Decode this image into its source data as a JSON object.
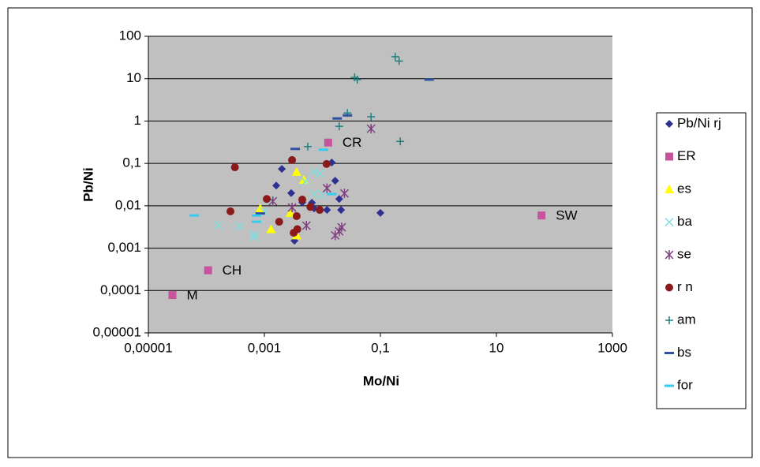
{
  "chart_data": {
    "type": "scatter",
    "x_label": "Mo/Ni",
    "y_label": "Pb/Ni",
    "xscale": "log",
    "yscale": "log",
    "grid": true,
    "legend": "right",
    "xlim": [
      1e-05,
      1000
    ],
    "ylim": [
      1e-05,
      100
    ],
    "xticks": [
      {
        "value": 1e-05,
        "label": "0,00001"
      },
      {
        "value": 0.001,
        "label": "0,001"
      },
      {
        "value": 0.1,
        "label": "0,1"
      },
      10,
      1000
    ],
    "yticks": [
      {
        "value": 1e-05,
        "label": "0,00001"
      },
      {
        "value": 0.0001,
        "label": "0,0001"
      },
      {
        "value": 0.001,
        "label": "0,001"
      },
      {
        "value": 0.01,
        "label": "0,01"
      },
      {
        "value": 0.1,
        "label": "0,1"
      },
      1,
      10,
      100
    ],
    "series": [
      {
        "name": "Pb/Ni rj",
        "color": "#2e3192",
        "marker": "diamond",
        "x": [
          0.002,
          0.0016,
          0.0029,
          0.0045,
          0.0066,
          0.0145,
          0.0166,
          0.0195,
          0.021,
          0.012,
          0.0033,
          0.1,
          0.0072
        ],
        "values": [
          0.074,
          0.03,
          0.02,
          0.012,
          0.0118,
          0.105,
          0.039,
          0.0145,
          0.008,
          0.008,
          0.0015,
          0.0068,
          0.0087
        ]
      },
      {
        "name": "ER",
        "color": "#c6539b",
        "marker": "square",
        "x": [
          2.6e-05,
          0.000107,
          0.0126,
          60
        ],
        "values": [
          7.8e-05,
          0.0003,
          0.31,
          0.0059
        ],
        "labels": [
          "M",
          "CH",
          "CR",
          "SW"
        ]
      },
      {
        "name": "es",
        "color": "#ffff00",
        "marker": "triangle",
        "x": [
          0.0036,
          0.0048,
          0.00085,
          0.0013,
          0.0036,
          0.0028
        ],
        "values": [
          0.063,
          0.041,
          0.0087,
          0.0028,
          0.002,
          0.0068
        ]
      },
      {
        "name": "ba",
        "color": "#7fdfe0",
        "marker": "x",
        "x": [
          0.00016,
          0.00037,
          0.00066,
          0.00066,
          0.0013,
          0.001,
          0.0072,
          0.009,
          0.0072,
          0.01,
          0.0051
        ],
        "values": [
          0.0035,
          0.0033,
          0.0021,
          0.0018,
          0.0135,
          0.0073,
          0.063,
          0.058,
          0.019,
          0.018,
          0.037
        ]
      },
      {
        "name": "se",
        "color": "#7f3f7f",
        "marker": "star",
        "x": [
          0.069,
          0.012,
          0.024,
          0.0166,
          0.0195,
          0.0215,
          0.0053,
          0.003,
          0.0014
        ],
        "values": [
          0.66,
          0.026,
          0.0196,
          0.002,
          0.0025,
          0.0031,
          0.0034,
          0.0091,
          0.0128
        ]
      },
      {
        "name": "r n",
        "color": "#8b1a1a",
        "marker": "circle",
        "x": [
          0.00031,
          0.00026,
          0.0011,
          0.0018,
          0.003,
          0.0036,
          0.0032,
          0.0037,
          0.0062,
          0.009,
          0.0118,
          0.0045
        ],
        "values": [
          0.081,
          0.0074,
          0.0145,
          0.0042,
          0.12,
          0.0057,
          0.0023,
          0.0028,
          0.0094,
          0.008,
          0.097,
          0.014
        ]
      },
      {
        "name": "am",
        "color": "#208080",
        "marker": "plus",
        "x": [
          0.18,
          0.21,
          0.036,
          0.04,
          0.027,
          0.069,
          0.22,
          0.0195,
          0.0056
        ],
        "values": [
          33,
          26,
          10.7,
          9.5,
          1.55,
          1.26,
          0.33,
          0.75,
          0.25
        ]
      },
      {
        "name": "bs",
        "color": "#2f4fa0",
        "marker": "dash",
        "x": [
          0.69,
          0.018,
          0.027,
          0.0034,
          0.00085
        ],
        "values": [
          9.5,
          1.15,
          1.36,
          0.22,
          0.0066
        ]
      },
      {
        "name": "for",
        "color": "#33ccee",
        "marker": "dash",
        "x": [
          6.2e-05,
          0.00073,
          0.00073,
          0.0104,
          0.0145
        ],
        "values": [
          0.0059,
          0.0059,
          0.0042,
          0.21,
          0.0189
        ]
      }
    ]
  }
}
